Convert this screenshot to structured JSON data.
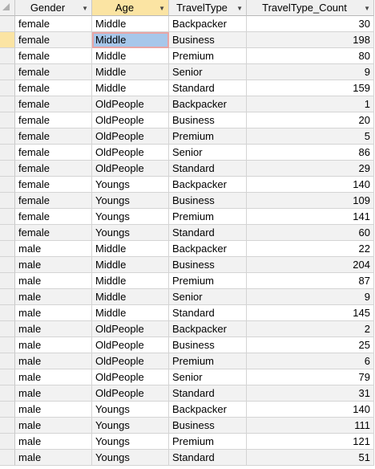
{
  "columns": [
    "Gender",
    "Age",
    "TravelType",
    "TravelType_Count"
  ],
  "rows": [
    {
      "gender": "female",
      "age": "Middle",
      "travel_type": "Backpacker",
      "count": "30"
    },
    {
      "gender": "female",
      "age": "Middle",
      "travel_type": "Business",
      "count": "198"
    },
    {
      "gender": "female",
      "age": "Middle",
      "travel_type": "Premium",
      "count": "80"
    },
    {
      "gender": "female",
      "age": "Middle",
      "travel_type": "Senior",
      "count": "9"
    },
    {
      "gender": "female",
      "age": "Middle",
      "travel_type": "Standard",
      "count": "159"
    },
    {
      "gender": "female",
      "age": "OldPeople",
      "travel_type": "Backpacker",
      "count": "1"
    },
    {
      "gender": "female",
      "age": "OldPeople",
      "travel_type": "Business",
      "count": "20"
    },
    {
      "gender": "female",
      "age": "OldPeople",
      "travel_type": "Premium",
      "count": "5"
    },
    {
      "gender": "female",
      "age": "OldPeople",
      "travel_type": "Senior",
      "count": "86"
    },
    {
      "gender": "female",
      "age": "OldPeople",
      "travel_type": "Standard",
      "count": "29"
    },
    {
      "gender": "female",
      "age": "Youngs",
      "travel_type": "Backpacker",
      "count": "140"
    },
    {
      "gender": "female",
      "age": "Youngs",
      "travel_type": "Business",
      "count": "109"
    },
    {
      "gender": "female",
      "age": "Youngs",
      "travel_type": "Premium",
      "count": "141"
    },
    {
      "gender": "female",
      "age": "Youngs",
      "travel_type": "Standard",
      "count": "60"
    },
    {
      "gender": "male",
      "age": "Middle",
      "travel_type": "Backpacker",
      "count": "22"
    },
    {
      "gender": "male",
      "age": "Middle",
      "travel_type": "Business",
      "count": "204"
    },
    {
      "gender": "male",
      "age": "Middle",
      "travel_type": "Premium",
      "count": "87"
    },
    {
      "gender": "male",
      "age": "Middle",
      "travel_type": "Senior",
      "count": "9"
    },
    {
      "gender": "male",
      "age": "Middle",
      "travel_type": "Standard",
      "count": "145"
    },
    {
      "gender": "male",
      "age": "OldPeople",
      "travel_type": "Backpacker",
      "count": "2"
    },
    {
      "gender": "male",
      "age": "OldPeople",
      "travel_type": "Business",
      "count": "25"
    },
    {
      "gender": "male",
      "age": "OldPeople",
      "travel_type": "Premium",
      "count": "6"
    },
    {
      "gender": "male",
      "age": "OldPeople",
      "travel_type": "Senior",
      "count": "79"
    },
    {
      "gender": "male",
      "age": "OldPeople",
      "travel_type": "Standard",
      "count": "31"
    },
    {
      "gender": "male",
      "age": "Youngs",
      "travel_type": "Backpacker",
      "count": "140"
    },
    {
      "gender": "male",
      "age": "Youngs",
      "travel_type": "Business",
      "count": "111"
    },
    {
      "gender": "male",
      "age": "Youngs",
      "travel_type": "Premium",
      "count": "121"
    },
    {
      "gender": "male",
      "age": "Youngs",
      "travel_type": "Standard",
      "count": "51"
    }
  ],
  "selection": {
    "row": 2,
    "column": "Age"
  },
  "icons": {
    "sort_arrow": "dropdown-arrow-icon",
    "select_all": "select-all-corner-icon"
  },
  "colors": {
    "active_header": "#fbe4a3",
    "focused_cell": "#a7c7ea",
    "focus_border": "#e8a5a5"
  }
}
